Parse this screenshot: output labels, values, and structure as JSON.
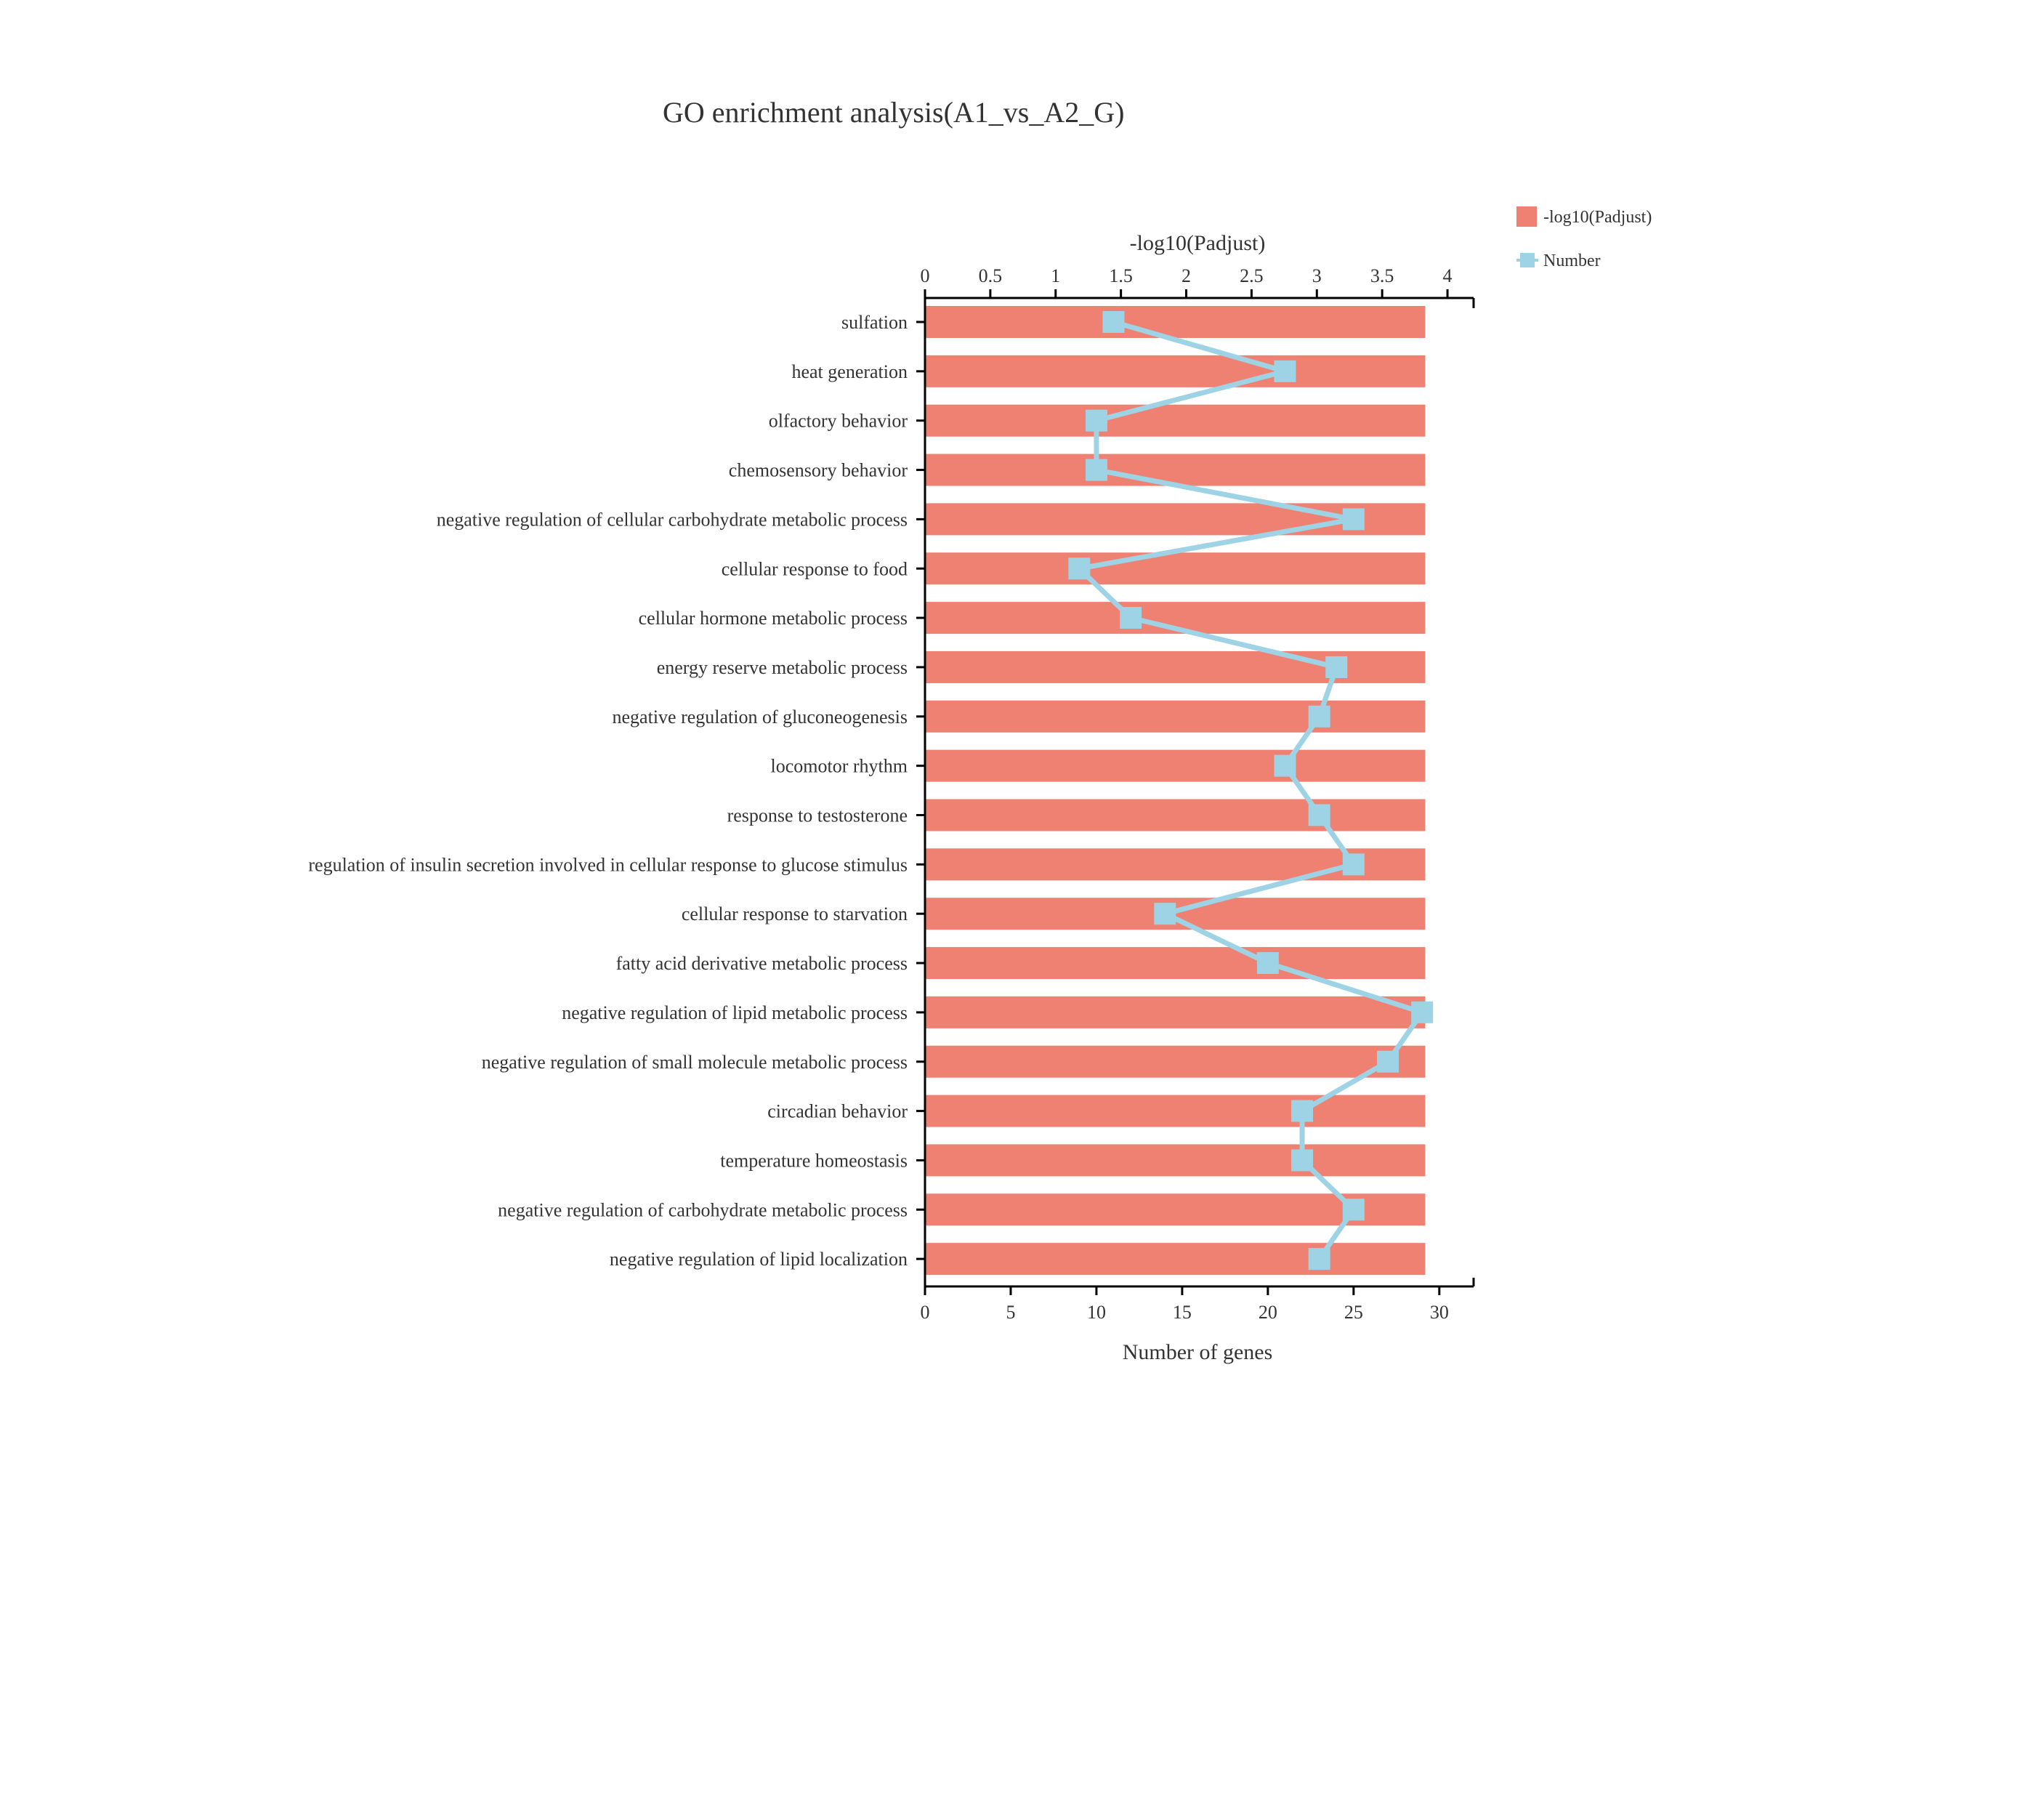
{
  "chart_data": {
    "type": "bar",
    "title": "GO enrichment analysis(A1_vs_A2_G)",
    "categories": [
      "sulfation",
      "heat generation",
      "olfactory behavior",
      "chemosensory behavior",
      "negative regulation of cellular carbohydrate metabolic process",
      "cellular response to food",
      "cellular hormone metabolic process",
      "energy reserve metabolic process",
      "negative regulation of gluconeogenesis",
      "locomotor rhythm",
      "response to testosterone",
      "regulation of insulin secretion involved in cellular response to glucose stimulus",
      "cellular response to starvation",
      "fatty acid derivative metabolic process",
      "negative regulation of lipid metabolic process",
      "negative regulation of small molecule metabolic process",
      "circadian behavior",
      "temperature homeostasis",
      "negative regulation of carbohydrate metabolic process",
      "negative regulation of lipid localization"
    ],
    "series": [
      {
        "name": "-log10(Padjust)",
        "type": "bar",
        "axis": "top",
        "color": "#ee8172",
        "values": [
          3.83,
          3.83,
          3.83,
          3.83,
          3.83,
          3.83,
          3.83,
          3.83,
          3.83,
          3.83,
          3.83,
          3.83,
          3.83,
          3.83,
          3.83,
          3.83,
          3.83,
          3.83,
          3.83,
          3.83
        ]
      },
      {
        "name": "Number",
        "type": "line",
        "axis": "bottom",
        "color": "#9dd3e4",
        "values": [
          11,
          21,
          10,
          10,
          25,
          9,
          12,
          24,
          23,
          21,
          23,
          25,
          14,
          20,
          29,
          27,
          22,
          22,
          25,
          23
        ]
      }
    ],
    "top_axis": {
      "label": "-log10(Padjust)",
      "min": 0,
      "max": 4.2,
      "ticks": [
        0,
        0.5,
        1,
        1.5,
        2,
        2.5,
        3,
        3.5,
        4
      ],
      "tick_labels": [
        "0",
        "0.5",
        "1",
        "1.5",
        "2",
        "2.5",
        "3",
        "3.5",
        "4"
      ]
    },
    "bottom_axis": {
      "label": "Number of genes",
      "min": 0,
      "max": 32,
      "ticks": [
        0,
        5,
        10,
        15,
        20,
        25,
        30
      ],
      "tick_labels": [
        "0",
        "5",
        "10",
        "15",
        "20",
        "25",
        "30"
      ]
    },
    "legend": {
      "placement": "top-right",
      "entries": [
        "-log10(Padjust)",
        "Number"
      ]
    },
    "grid": false
  }
}
